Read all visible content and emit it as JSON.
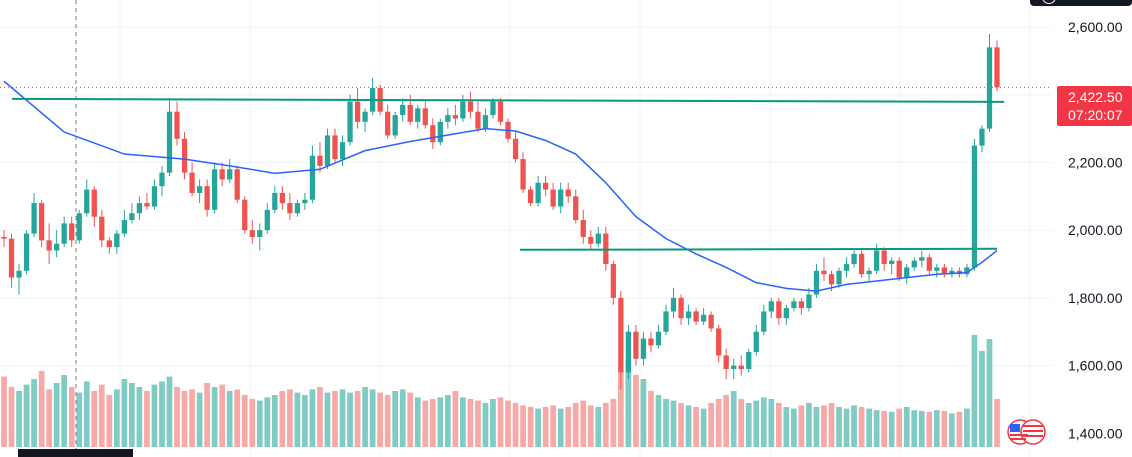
{
  "chart_data": {
    "type": "candlestick",
    "title": "",
    "xlabel": "",
    "ylabel": "",
    "ylim": [
      1330,
      2680
    ],
    "y_ticks": [
      "2,600.00",
      "2,400.00",
      "2,200.00",
      "2,000.00",
      "1,800.00",
      "1,600.00",
      "1,400.00"
    ],
    "y_tick_values": [
      2600,
      2400,
      2200,
      2000,
      1800,
      1600,
      1400
    ],
    "last_price": "2,422.50",
    "countdown": "07:20:07",
    "horizontal_levels": [
      2388,
      1945
    ],
    "ohlc_series": [
      {
        "x": 0,
        "o": 1980,
        "h": 2000,
        "l": 1950,
        "c": 1975
      },
      {
        "x": 1,
        "o": 1975,
        "h": 1990,
        "l": 1830,
        "c": 1860
      },
      {
        "x": 2,
        "o": 1860,
        "h": 1900,
        "l": 1810,
        "c": 1880
      },
      {
        "x": 3,
        "o": 1880,
        "h": 2000,
        "l": 1870,
        "c": 1990
      },
      {
        "x": 4,
        "o": 1990,
        "h": 2110,
        "l": 1980,
        "c": 2080
      },
      {
        "x": 5,
        "o": 2080,
        "h": 2090,
        "l": 1950,
        "c": 1970
      },
      {
        "x": 6,
        "o": 1970,
        "h": 2020,
        "l": 1900,
        "c": 1940
      },
      {
        "x": 7,
        "o": 1940,
        "h": 2000,
        "l": 1920,
        "c": 1960
      },
      {
        "x": 8,
        "o": 1960,
        "h": 2040,
        "l": 1950,
        "c": 2020
      },
      {
        "x": 9,
        "o": 2020,
        "h": 2040,
        "l": 1950,
        "c": 1970
      },
      {
        "x": 10,
        "o": 1970,
        "h": 2060,
        "l": 1960,
        "c": 2050
      },
      {
        "x": 11,
        "o": 2050,
        "h": 2150,
        "l": 2040,
        "c": 2120
      },
      {
        "x": 12,
        "o": 2120,
        "h": 2130,
        "l": 2010,
        "c": 2040
      },
      {
        "x": 13,
        "o": 2040,
        "h": 2060,
        "l": 1950,
        "c": 1970
      },
      {
        "x": 14,
        "o": 1970,
        "h": 1980,
        "l": 1930,
        "c": 1950
      },
      {
        "x": 15,
        "o": 1950,
        "h": 2000,
        "l": 1930,
        "c": 1990
      },
      {
        "x": 16,
        "o": 1990,
        "h": 2060,
        "l": 1980,
        "c": 2030
      },
      {
        "x": 17,
        "o": 2030,
        "h": 2080,
        "l": 2020,
        "c": 2050
      },
      {
        "x": 18,
        "o": 2050,
        "h": 2100,
        "l": 2030,
        "c": 2080
      },
      {
        "x": 19,
        "o": 2080,
        "h": 2110,
        "l": 2060,
        "c": 2070
      },
      {
        "x": 20,
        "o": 2070,
        "h": 2150,
        "l": 2060,
        "c": 2130
      },
      {
        "x": 21,
        "o": 2130,
        "h": 2190,
        "l": 2100,
        "c": 2170
      },
      {
        "x": 22,
        "o": 2170,
        "h": 2390,
        "l": 2160,
        "c": 2350
      },
      {
        "x": 23,
        "o": 2350,
        "h": 2380,
        "l": 2250,
        "c": 2270
      },
      {
        "x": 24,
        "o": 2270,
        "h": 2290,
        "l": 2150,
        "c": 2170
      },
      {
        "x": 25,
        "o": 2170,
        "h": 2200,
        "l": 2100,
        "c": 2110
      },
      {
        "x": 26,
        "o": 2110,
        "h": 2150,
        "l": 2080,
        "c": 2130
      },
      {
        "x": 27,
        "o": 2130,
        "h": 2150,
        "l": 2040,
        "c": 2060
      },
      {
        "x": 28,
        "o": 2060,
        "h": 2200,
        "l": 2050,
        "c": 2180
      },
      {
        "x": 29,
        "o": 2180,
        "h": 2200,
        "l": 2130,
        "c": 2150
      },
      {
        "x": 30,
        "o": 2150,
        "h": 2210,
        "l": 2140,
        "c": 2180
      },
      {
        "x": 31,
        "o": 2180,
        "h": 2190,
        "l": 2080,
        "c": 2090
      },
      {
        "x": 32,
        "o": 2090,
        "h": 2100,
        "l": 1990,
        "c": 2000
      },
      {
        "x": 33,
        "o": 2000,
        "h": 2030,
        "l": 1960,
        "c": 1980
      },
      {
        "x": 34,
        "o": 1980,
        "h": 2020,
        "l": 1940,
        "c": 2000
      },
      {
        "x": 35,
        "o": 2000,
        "h": 2080,
        "l": 1990,
        "c": 2060
      },
      {
        "x": 36,
        "o": 2060,
        "h": 2130,
        "l": 2050,
        "c": 2110
      },
      {
        "x": 37,
        "o": 2110,
        "h": 2130,
        "l": 2060,
        "c": 2080
      },
      {
        "x": 38,
        "o": 2080,
        "h": 2110,
        "l": 2030,
        "c": 2050
      },
      {
        "x": 39,
        "o": 2050,
        "h": 2090,
        "l": 2040,
        "c": 2080
      },
      {
        "x": 40,
        "o": 2080,
        "h": 2110,
        "l": 2060,
        "c": 2090
      },
      {
        "x": 41,
        "o": 2090,
        "h": 2250,
        "l": 2080,
        "c": 2220
      },
      {
        "x": 42,
        "o": 2220,
        "h": 2260,
        "l": 2170,
        "c": 2190
      },
      {
        "x": 43,
        "o": 2190,
        "h": 2300,
        "l": 2180,
        "c": 2280
      },
      {
        "x": 44,
        "o": 2280,
        "h": 2300,
        "l": 2200,
        "c": 2210
      },
      {
        "x": 45,
        "o": 2210,
        "h": 2280,
        "l": 2190,
        "c": 2260
      },
      {
        "x": 46,
        "o": 2260,
        "h": 2400,
        "l": 2250,
        "c": 2380
      },
      {
        "x": 47,
        "o": 2380,
        "h": 2420,
        "l": 2300,
        "c": 2320
      },
      {
        "x": 48,
        "o": 2320,
        "h": 2360,
        "l": 2290,
        "c": 2350
      },
      {
        "x": 49,
        "o": 2350,
        "h": 2450,
        "l": 2340,
        "c": 2420
      },
      {
        "x": 50,
        "o": 2420,
        "h": 2430,
        "l": 2340,
        "c": 2350
      },
      {
        "x": 51,
        "o": 2350,
        "h": 2370,
        "l": 2270,
        "c": 2280
      },
      {
        "x": 52,
        "o": 2280,
        "h": 2350,
        "l": 2270,
        "c": 2340
      },
      {
        "x": 53,
        "o": 2340,
        "h": 2390,
        "l": 2320,
        "c": 2370
      },
      {
        "x": 54,
        "o": 2370,
        "h": 2400,
        "l": 2310,
        "c": 2320
      },
      {
        "x": 55,
        "o": 2320,
        "h": 2370,
        "l": 2300,
        "c": 2360
      },
      {
        "x": 56,
        "o": 2360,
        "h": 2380,
        "l": 2300,
        "c": 2310
      },
      {
        "x": 57,
        "o": 2310,
        "h": 2330,
        "l": 2240,
        "c": 2260
      },
      {
        "x": 58,
        "o": 2260,
        "h": 2330,
        "l": 2250,
        "c": 2320
      },
      {
        "x": 59,
        "o": 2320,
        "h": 2360,
        "l": 2300,
        "c": 2340
      },
      {
        "x": 60,
        "o": 2340,
        "h": 2370,
        "l": 2310,
        "c": 2330
      },
      {
        "x": 61,
        "o": 2330,
        "h": 2400,
        "l": 2320,
        "c": 2380
      },
      {
        "x": 62,
        "o": 2380,
        "h": 2410,
        "l": 2330,
        "c": 2350
      },
      {
        "x": 63,
        "o": 2350,
        "h": 2380,
        "l": 2290,
        "c": 2300
      },
      {
        "x": 64,
        "o": 2300,
        "h": 2360,
        "l": 2290,
        "c": 2340
      },
      {
        "x": 65,
        "o": 2340,
        "h": 2390,
        "l": 2330,
        "c": 2380
      },
      {
        "x": 66,
        "o": 2380,
        "h": 2390,
        "l": 2310,
        "c": 2320
      },
      {
        "x": 67,
        "o": 2320,
        "h": 2330,
        "l": 2260,
        "c": 2270
      },
      {
        "x": 68,
        "o": 2270,
        "h": 2290,
        "l": 2200,
        "c": 2210
      },
      {
        "x": 69,
        "o": 2210,
        "h": 2230,
        "l": 2110,
        "c": 2120
      },
      {
        "x": 70,
        "o": 2120,
        "h": 2130,
        "l": 2070,
        "c": 2080
      },
      {
        "x": 71,
        "o": 2080,
        "h": 2160,
        "l": 2070,
        "c": 2140
      },
      {
        "x": 72,
        "o": 2140,
        "h": 2160,
        "l": 2100,
        "c": 2120
      },
      {
        "x": 73,
        "o": 2120,
        "h": 2140,
        "l": 2060,
        "c": 2070
      },
      {
        "x": 74,
        "o": 2070,
        "h": 2140,
        "l": 2050,
        "c": 2120
      },
      {
        "x": 75,
        "o": 2120,
        "h": 2140,
        "l": 2080,
        "c": 2100
      },
      {
        "x": 76,
        "o": 2100,
        "h": 2120,
        "l": 2020,
        "c": 2030
      },
      {
        "x": 77,
        "o": 2030,
        "h": 2060,
        "l": 1960,
        "c": 1980
      },
      {
        "x": 78,
        "o": 1980,
        "h": 2000,
        "l": 1940,
        "c": 1960
      },
      {
        "x": 79,
        "o": 1960,
        "h": 2010,
        "l": 1950,
        "c": 1990
      },
      {
        "x": 80,
        "o": 1990,
        "h": 2010,
        "l": 1880,
        "c": 1900
      },
      {
        "x": 81,
        "o": 1900,
        "h": 1910,
        "l": 1780,
        "c": 1800
      },
      {
        "x": 82,
        "o": 1800,
        "h": 1820,
        "l": 1530,
        "c": 1580
      },
      {
        "x": 83,
        "o": 1580,
        "h": 1720,
        "l": 1560,
        "c": 1700
      },
      {
        "x": 84,
        "o": 1700,
        "h": 1720,
        "l": 1600,
        "c": 1620
      },
      {
        "x": 85,
        "o": 1620,
        "h": 1700,
        "l": 1600,
        "c": 1680
      },
      {
        "x": 86,
        "o": 1680,
        "h": 1700,
        "l": 1640,
        "c": 1660
      },
      {
        "x": 87,
        "o": 1660,
        "h": 1720,
        "l": 1650,
        "c": 1700
      },
      {
        "x": 88,
        "o": 1700,
        "h": 1780,
        "l": 1690,
        "c": 1760
      },
      {
        "x": 89,
        "o": 1760,
        "h": 1830,
        "l": 1740,
        "c": 1800
      },
      {
        "x": 90,
        "o": 1800,
        "h": 1810,
        "l": 1720,
        "c": 1740
      },
      {
        "x": 91,
        "o": 1740,
        "h": 1780,
        "l": 1720,
        "c": 1760
      },
      {
        "x": 92,
        "o": 1760,
        "h": 1770,
        "l": 1720,
        "c": 1730
      },
      {
        "x": 93,
        "o": 1730,
        "h": 1770,
        "l": 1720,
        "c": 1750
      },
      {
        "x": 94,
        "o": 1750,
        "h": 1760,
        "l": 1700,
        "c": 1710
      },
      {
        "x": 95,
        "o": 1710,
        "h": 1720,
        "l": 1610,
        "c": 1630
      },
      {
        "x": 96,
        "o": 1630,
        "h": 1650,
        "l": 1560,
        "c": 1590
      },
      {
        "x": 97,
        "o": 1590,
        "h": 1620,
        "l": 1560,
        "c": 1600
      },
      {
        "x": 98,
        "o": 1600,
        "h": 1630,
        "l": 1570,
        "c": 1590
      },
      {
        "x": 99,
        "o": 1590,
        "h": 1650,
        "l": 1580,
        "c": 1640
      },
      {
        "x": 100,
        "o": 1640,
        "h": 1720,
        "l": 1630,
        "c": 1700
      },
      {
        "x": 101,
        "o": 1700,
        "h": 1780,
        "l": 1690,
        "c": 1760
      },
      {
        "x": 102,
        "o": 1760,
        "h": 1800,
        "l": 1740,
        "c": 1790
      },
      {
        "x": 103,
        "o": 1790,
        "h": 1800,
        "l": 1720,
        "c": 1740
      },
      {
        "x": 104,
        "o": 1740,
        "h": 1780,
        "l": 1720,
        "c": 1770
      },
      {
        "x": 105,
        "o": 1770,
        "h": 1800,
        "l": 1760,
        "c": 1790
      },
      {
        "x": 106,
        "o": 1790,
        "h": 1800,
        "l": 1750,
        "c": 1770
      },
      {
        "x": 107,
        "o": 1770,
        "h": 1830,
        "l": 1760,
        "c": 1810
      },
      {
        "x": 108,
        "o": 1810,
        "h": 1900,
        "l": 1800,
        "c": 1880
      },
      {
        "x": 109,
        "o": 1880,
        "h": 1920,
        "l": 1850,
        "c": 1870
      },
      {
        "x": 110,
        "o": 1870,
        "h": 1880,
        "l": 1820,
        "c": 1840
      },
      {
        "x": 111,
        "o": 1840,
        "h": 1890,
        "l": 1830,
        "c": 1880
      },
      {
        "x": 112,
        "o": 1880,
        "h": 1920,
        "l": 1860,
        "c": 1900
      },
      {
        "x": 113,
        "o": 1900,
        "h": 1940,
        "l": 1890,
        "c": 1930
      },
      {
        "x": 114,
        "o": 1930,
        "h": 1940,
        "l": 1860,
        "c": 1870
      },
      {
        "x": 115,
        "o": 1870,
        "h": 1890,
        "l": 1850,
        "c": 1880
      },
      {
        "x": 116,
        "o": 1880,
        "h": 1960,
        "l": 1870,
        "c": 1940
      },
      {
        "x": 117,
        "o": 1940,
        "h": 1950,
        "l": 1880,
        "c": 1900
      },
      {
        "x": 118,
        "o": 1900,
        "h": 1920,
        "l": 1870,
        "c": 1910
      },
      {
        "x": 119,
        "o": 1910,
        "h": 1920,
        "l": 1850,
        "c": 1860
      },
      {
        "x": 120,
        "o": 1860,
        "h": 1900,
        "l": 1840,
        "c": 1890
      },
      {
        "x": 121,
        "o": 1890,
        "h": 1920,
        "l": 1880,
        "c": 1910
      },
      {
        "x": 122,
        "o": 1910,
        "h": 1940,
        "l": 1890,
        "c": 1920
      },
      {
        "x": 123,
        "o": 1920,
        "h": 1930,
        "l": 1870,
        "c": 1880
      },
      {
        "x": 124,
        "o": 1880,
        "h": 1900,
        "l": 1860,
        "c": 1890
      },
      {
        "x": 125,
        "o": 1890,
        "h": 1900,
        "l": 1860,
        "c": 1870
      },
      {
        "x": 126,
        "o": 1870,
        "h": 1890,
        "l": 1860,
        "c": 1880
      },
      {
        "x": 127,
        "o": 1880,
        "h": 1890,
        "l": 1860,
        "c": 1870
      },
      {
        "x": 128,
        "o": 1870,
        "h": 1900,
        "l": 1860,
        "c": 1890
      },
      {
        "x": 129,
        "o": 1890,
        "h": 2270,
        "l": 1880,
        "c": 2250
      },
      {
        "x": 130,
        "o": 2250,
        "h": 2310,
        "l": 2230,
        "c": 2300
      },
      {
        "x": 131,
        "o": 2300,
        "h": 2580,
        "l": 2290,
        "c": 2540
      },
      {
        "x": 132,
        "o": 2540,
        "h": 2560,
        "l": 2410,
        "c": 2422
      }
    ],
    "volume": [
      88,
      75,
      70,
      78,
      85,
      95,
      72,
      80,
      90,
      75,
      68,
      82,
      70,
      78,
      65,
      72,
      85,
      80,
      75,
      70,
      78,
      82,
      88,
      75,
      70,
      72,
      68,
      80,
      75,
      78,
      70,
      72,
      65,
      60,
      58,
      62,
      65,
      70,
      72,
      68,
      65,
      72,
      75,
      68,
      70,
      72,
      68,
      70,
      75,
      72,
      68,
      65,
      70,
      72,
      68,
      62,
      58,
      60,
      62,
      65,
      70,
      62,
      60,
      58,
      55,
      60,
      62,
      58,
      55,
      52,
      50,
      48,
      50,
      52,
      48,
      50,
      55,
      58,
      52,
      50,
      55,
      60,
      95,
      110,
      90,
      85,
      70,
      65,
      60,
      58,
      55,
      52,
      50,
      48,
      55,
      60,
      65,
      70,
      60,
      55,
      58,
      62,
      60,
      55,
      50,
      48,
      52,
      55,
      50,
      52,
      55,
      50,
      48,
      52,
      50,
      48,
      46,
      45,
      44,
      48,
      50,
      46,
      45,
      44,
      46,
      45,
      42,
      44,
      48,
      140,
      120,
      135,
      60
    ],
    "moving_average": [
      [
        0,
        2440
      ],
      [
        8,
        2290
      ],
      [
        16,
        2225
      ],
      [
        24,
        2210
      ],
      [
        30,
        2190
      ],
      [
        36,
        2168
      ],
      [
        42,
        2180
      ],
      [
        48,
        2235
      ],
      [
        54,
        2262
      ],
      [
        60,
        2285
      ],
      [
        64,
        2300
      ],
      [
        68,
        2293
      ],
      [
        72,
        2265
      ],
      [
        76,
        2225
      ],
      [
        80,
        2140
      ],
      [
        84,
        2040
      ],
      [
        88,
        1975
      ],
      [
        92,
        1930
      ],
      [
        96,
        1890
      ],
      [
        100,
        1845
      ],
      [
        104,
        1828
      ],
      [
        108,
        1820
      ],
      [
        112,
        1840
      ],
      [
        116,
        1850
      ],
      [
        120,
        1860
      ],
      [
        124,
        1870
      ],
      [
        128,
        1875
      ],
      [
        130,
        1905
      ],
      [
        132,
        1940
      ]
    ],
    "grid": true,
    "legend": "none"
  },
  "colors": {
    "up": "#26a69a",
    "down": "#ef5350",
    "up_volume": "#80cbc4",
    "down_volume": "#f7a9a7",
    "ma_line": "#2962ff",
    "level_line": "#089981",
    "price_label_bg": "#f23645",
    "axis_text": "#131722",
    "grid": "#f0f3fa"
  },
  "icons": {
    "flag": "us-flag-icon",
    "settings": "settings-circle-icon"
  }
}
